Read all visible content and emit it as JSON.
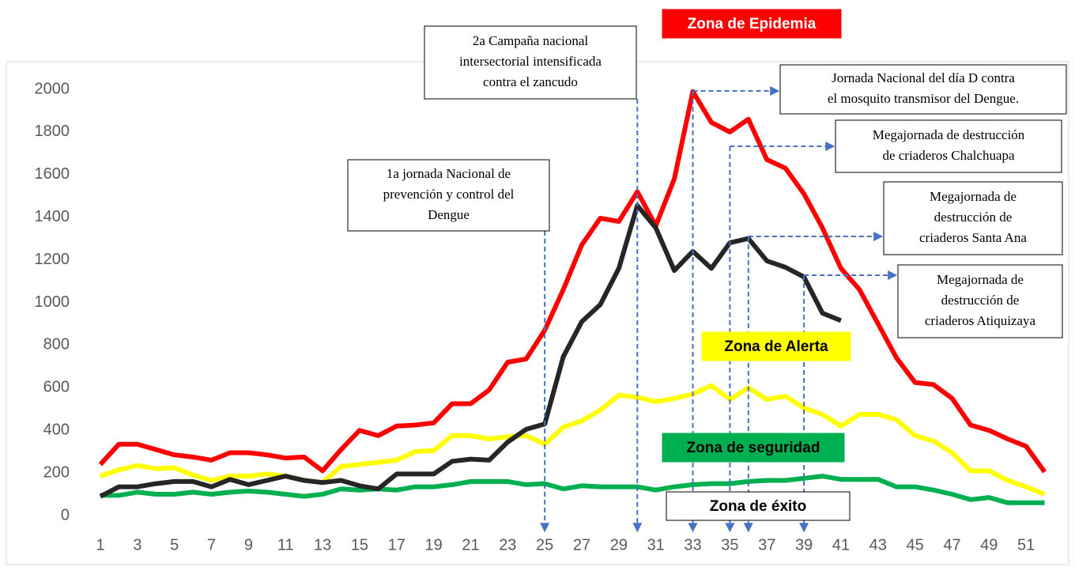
{
  "chart_data": {
    "type": "line",
    "x": [
      1,
      2,
      3,
      4,
      5,
      6,
      7,
      8,
      9,
      10,
      11,
      12,
      13,
      14,
      15,
      16,
      17,
      18,
      19,
      20,
      21,
      22,
      23,
      24,
      25,
      26,
      27,
      28,
      29,
      30,
      31,
      32,
      33,
      34,
      35,
      36,
      37,
      38,
      39,
      40,
      41,
      42,
      43,
      44,
      45,
      46,
      47,
      48,
      49,
      50,
      51,
      52
    ],
    "series": [
      {
        "color": "#ff0000",
        "values": [
          240,
          335,
          335,
          310,
          285,
          275,
          260,
          295,
          295,
          285,
          270,
          275,
          210,
          310,
          400,
          375,
          420,
          425,
          435,
          525,
          525,
          590,
          720,
          735,
          870,
          1060,
          1270,
          1395,
          1380,
          1520,
          1360,
          1580,
          1990,
          1845,
          1800,
          1860,
          1670,
          1630,
          1510,
          1350,
          1160,
          1060,
          900,
          740,
          625,
          615,
          550,
          425,
          400,
          360,
          325,
          205
        ]
      },
      {
        "color": "#ffff00",
        "values": [
          185,
          215,
          235,
          220,
          225,
          190,
          165,
          185,
          185,
          195,
          185,
          165,
          155,
          230,
          240,
          250,
          260,
          300,
          305,
          375,
          375,
          360,
          370,
          375,
          335,
          415,
          445,
          495,
          565,
          555,
          535,
          550,
          570,
          610,
          545,
          600,
          545,
          560,
          505,
          475,
          420,
          475,
          475,
          450,
          375,
          350,
          295,
          210,
          210,
          165,
          135,
          100
        ]
      },
      {
        "color": "#00b050",
        "values": [
          95,
          95,
          110,
          100,
          100,
          110,
          100,
          110,
          115,
          110,
          100,
          90,
          100,
          125,
          120,
          125,
          120,
          135,
          135,
          145,
          160,
          160,
          160,
          145,
          150,
          125,
          140,
          135,
          135,
          135,
          120,
          135,
          145,
          150,
          150,
          160,
          165,
          165,
          175,
          185,
          170,
          170,
          170,
          135,
          135,
          120,
          100,
          75,
          85,
          60,
          60,
          60
        ]
      },
      {
        "color": "#262626",
        "values": [
          90,
          135,
          135,
          150,
          160,
          160,
          135,
          170,
          145,
          165,
          185,
          165,
          155,
          165,
          140,
          125,
          195,
          195,
          195,
          255,
          265,
          260,
          345,
          405,
          430,
          745,
          910,
          990,
          1160,
          1455,
          1350,
          1150,
          1240,
          1160,
          1280,
          1300,
          1195,
          1165,
          1120,
          950,
          915,
          null,
          null,
          null,
          null,
          null,
          null,
          null,
          null,
          null,
          null,
          null
        ]
      }
    ],
    "xlim": [
      0,
      53
    ],
    "xticks": [
      1,
      3,
      5,
      7,
      9,
      11,
      13,
      15,
      17,
      19,
      21,
      23,
      25,
      27,
      29,
      31,
      33,
      35,
      37,
      39,
      41,
      43,
      45,
      47,
      49,
      51
    ],
    "ylim": [
      0,
      2000
    ],
    "yticks": [
      0,
      200,
      400,
      600,
      800,
      1000,
      1200,
      1400,
      1600,
      1800,
      2000
    ],
    "annotations": [
      {
        "lines": [
          "1a  jornada Nacional de",
          "prevención y control del",
          "Dengue"
        ],
        "x": 25
      },
      {
        "lines": [
          "2a Campaña nacional",
          "intersectorial intensificada",
          "contra el zancudo"
        ],
        "x": 30
      },
      {
        "lines": [
          "Jornada Nacional del día D contra",
          "el mosquito transmisor del Dengue."
        ],
        "x": 33
      },
      {
        "lines": [
          "Megajornada de destrucción",
          "de criaderos Chalchuapa"
        ],
        "x": 35
      },
      {
        "lines": [
          "Megajornada de",
          "destrucción de",
          "criaderos Santa Ana"
        ],
        "x": 36
      },
      {
        "lines": [
          "Megajornada de",
          "destrucción de",
          "criaderos Atiquizaya"
        ],
        "x": 39
      }
    ],
    "zones": [
      {
        "text": "Zona de Epidemia",
        "color": "#ff0000",
        "text_color": "#ffffff"
      },
      {
        "text": "Zona de Alerta",
        "color": "#ffff00",
        "text_color": "#000000"
      },
      {
        "text": "Zona de seguridad",
        "color": "#00b050",
        "text_color": "#000000"
      },
      {
        "text": "Zona de éxito",
        "color": "#ffffff",
        "text_color": "#000000"
      }
    ]
  }
}
